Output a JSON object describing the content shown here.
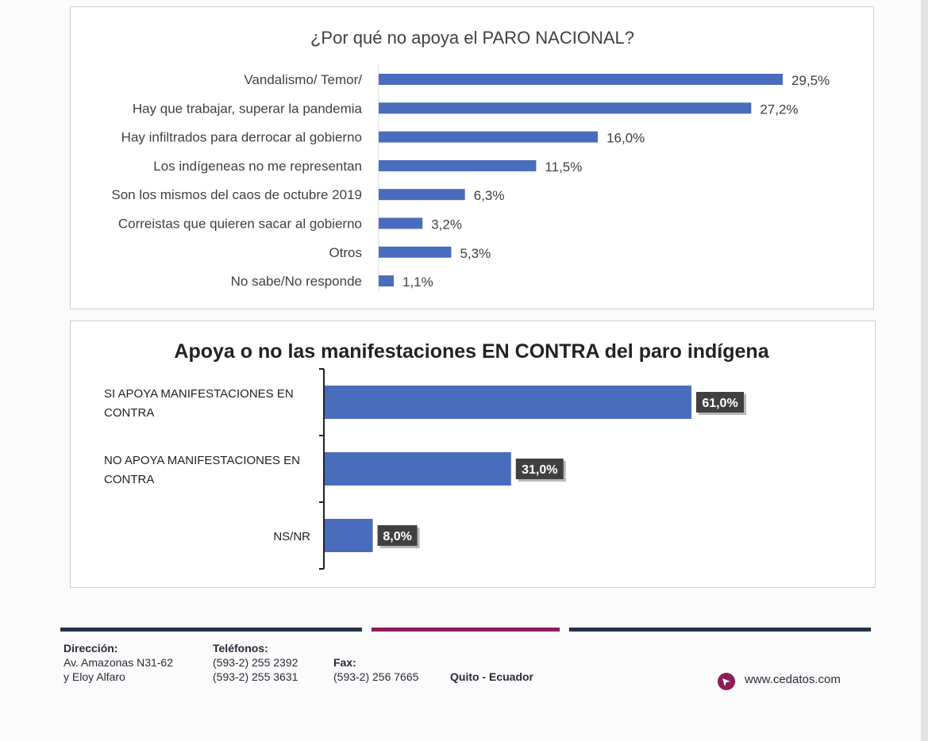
{
  "chart_data": [
    {
      "type": "bar",
      "orientation": "horizontal",
      "title": "¿Por qué no apoya el PARO NACIONAL?",
      "categories": [
        "Vandalismo/ Temor/",
        "Hay que trabajar, superar la pandemia",
        "Hay infiltrados para derrocar al gobierno",
        "Los indígeneas no me  representan",
        "Son los mismos del caos de octubre 2019",
        "Correistas que quieren sacar al gobierno",
        "Otros",
        "No sabe/No responde"
      ],
      "values": [
        29.5,
        27.2,
        16.0,
        11.5,
        6.3,
        3.2,
        5.3,
        1.1
      ],
      "value_labels": [
        "29,5%",
        "27,2%",
        "16,0%",
        "11,5%",
        "6,3%",
        "3,2%",
        "5,3%",
        "1,1%"
      ],
      "bar_color": "#4a6cbd",
      "grid": false
    },
    {
      "type": "bar",
      "orientation": "horizontal",
      "title": "Apoya o no las manifestaciones EN CONTRA del paro indígena",
      "categories": [
        [
          "SI APOYA MANIFESTACIONES EN",
          "CONTRA"
        ],
        [
          "NO APOYA MANIFESTACIONES EN",
          "CONTRA"
        ],
        [
          "NS/NR"
        ]
      ],
      "values": [
        61.0,
        31.0,
        8.0
      ],
      "value_labels": [
        "61,0%",
        "31,0%",
        "8,0%"
      ],
      "bar_color": "#4a6cbd",
      "label_box_color": "#404040",
      "grid": false
    }
  ],
  "footer": {
    "direccion_label": "Dirección:",
    "direccion_line1": "Av. Amazonas N31-62",
    "direccion_line2": "y Eloy Alfaro",
    "telefonos_label": "Teléfonos:",
    "telefono1": "(593-2) 255 2392",
    "telefono2": "(593-2) 255 3631",
    "fax_label": "Fax:",
    "fax": "(593-2) 256 7665",
    "city": "Quito - Ecuador",
    "website": "www.cedatos.com",
    "colors": {
      "dark_line": "#243447",
      "accent_line": "#8c1d5a"
    },
    "logo_icon": "cedatos-logo-icon"
  }
}
